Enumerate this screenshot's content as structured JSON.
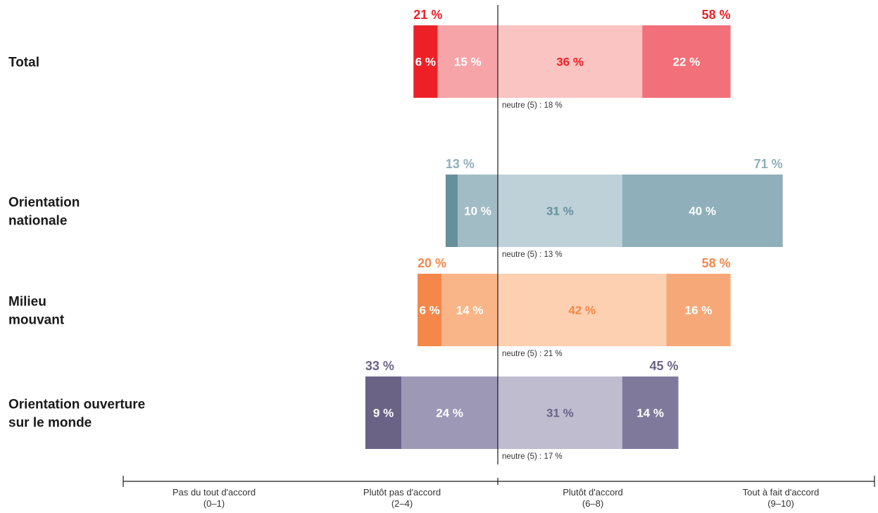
{
  "chart_data": {
    "type": "bar",
    "orientation": "horizontal",
    "stacked": "diverging",
    "unit": "%",
    "legend": "none",
    "grid": false,
    "scale": [
      {
        "line1": "Pas du tout d'accord",
        "line2": "(0–1)"
      },
      {
        "line1": "Plutôt pas d'accord",
        "line2": "(2–4)"
      },
      {
        "line1": "Plutôt d'accord",
        "line2": "(6–8)"
      },
      {
        "line1": "Tout à fait d'accord",
        "line2": "(9–10)"
      }
    ],
    "neutral_prefix": "neutre (5) : ",
    "rows": [
      {
        "label_lines": [
          "Total"
        ],
        "values": [
          6,
          15,
          36,
          22
        ],
        "disagree_total": 21,
        "agree_total": 58,
        "neutral": 18,
        "colors": [
          "#ee2027",
          "#f7a4a8",
          "#f9c4c2",
          "#f27079"
        ],
        "label_colors": [
          "#ffffff",
          "#ffffff",
          "#ee2027",
          "#ffffff"
        ],
        "total_color": "#ee2027"
      },
      {
        "label_lines": [
          "Orientation",
          "nationale"
        ],
        "values": [
          3,
          10,
          31,
          40
        ],
        "value_labels": [
          "",
          "10 %",
          "31 %",
          "40 %"
        ],
        "disagree_total": 13,
        "agree_total": 71,
        "neutral": 13,
        "colors": [
          "#668f9c",
          "#a2bcc5",
          "#bed1d8",
          "#8fafba"
        ],
        "label_colors": [
          "#ffffff",
          "#ffffff",
          "#668f9c",
          "#ffffff"
        ],
        "total_color": "#8fafba"
      },
      {
        "label_lines": [
          "Milieu",
          "mouvant"
        ],
        "values": [
          6,
          14,
          42,
          16
        ],
        "disagree_total": 20,
        "agree_total": 58,
        "neutral": 21,
        "colors": [
          "#f5874a",
          "#f9b588",
          "#fcd0b1",
          "#f7a878"
        ],
        "label_colors": [
          "#ffffff",
          "#ffffff",
          "#f5874a",
          "#ffffff"
        ],
        "total_color": "#f5874a"
      },
      {
        "label_lines": [
          "Orientation ouverture",
          "sur le monde"
        ],
        "values": [
          9,
          24,
          31,
          14
        ],
        "disagree_total": 33,
        "agree_total": 45,
        "neutral": 17,
        "colors": [
          "#6b6386",
          "#9c98b6",
          "#bfbcd0",
          "#7f7a9c"
        ],
        "label_colors": [
          "#ffffff",
          "#ffffff",
          "#6b6386",
          "#ffffff"
        ],
        "total_color": "#6b6386"
      }
    ]
  }
}
